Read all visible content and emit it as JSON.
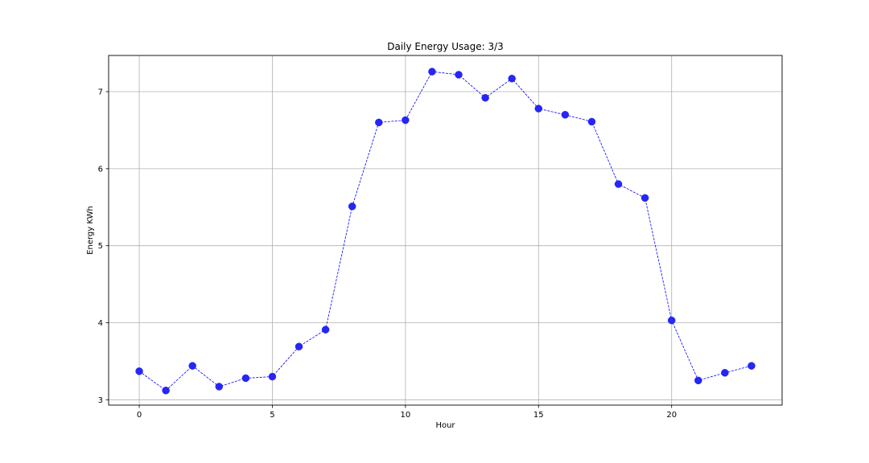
{
  "chart_data": {
    "type": "line",
    "title": "Daily Energy Usage: 3/3",
    "xlabel": "Hour",
    "ylabel": "Energy KWh",
    "xlim": [
      -1.15,
      24.15
    ],
    "ylim": [
      2.93,
      7.47
    ],
    "xticks": [
      0,
      5,
      10,
      15,
      20
    ],
    "yticks": [
      3,
      4,
      5,
      6,
      7
    ],
    "grid": true,
    "legend": "none",
    "line_style": "dashed",
    "marker": "circle",
    "colors": {
      "series": "#0000ff",
      "marker": "#2626f5",
      "grid": "#b0b0b0",
      "axes": "#000000"
    },
    "series": [
      {
        "x": [
          0,
          1,
          2,
          3,
          4,
          5,
          6,
          7,
          8,
          9,
          10,
          11,
          12,
          13,
          14,
          15,
          16,
          17,
          18,
          19,
          20,
          21,
          22,
          23
        ],
        "values": [
          3.37,
          3.12,
          3.44,
          3.17,
          3.28,
          3.3,
          3.69,
          3.91,
          5.51,
          6.6,
          6.63,
          7.26,
          7.22,
          6.92,
          7.17,
          6.78,
          6.7,
          6.61,
          5.8,
          5.62,
          4.03,
          3.25,
          3.35,
          3.44
        ]
      }
    ]
  }
}
